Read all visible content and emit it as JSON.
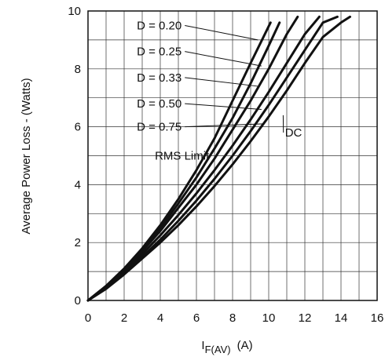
{
  "chart_data": {
    "type": "line",
    "title": "",
    "xlabel": "I",
    "xlabel_subscript": "F(AV)",
    "xlabel_unit": "(A)",
    "ylabel": "Average Power Loss - (Watts)",
    "xlim": [
      0,
      16
    ],
    "ylim": [
      0,
      10
    ],
    "x_ticks": [
      0,
      2,
      4,
      6,
      8,
      10,
      12,
      14,
      16
    ],
    "y_ticks": [
      0,
      2,
      4,
      6,
      8,
      10
    ],
    "grid": true,
    "legend": "none",
    "series": [
      {
        "name": "D = 0.20",
        "x": [
          0,
          1,
          2,
          3,
          4,
          5,
          6,
          7,
          8,
          9,
          10.1
        ],
        "y": [
          0,
          0.5,
          1.1,
          1.8,
          2.6,
          3.5,
          4.5,
          5.6,
          6.9,
          8.2,
          9.6
        ]
      },
      {
        "name": "D = 0.25",
        "x": [
          0,
          1,
          2,
          3,
          4,
          5,
          6,
          7,
          8,
          9,
          10,
          10.6
        ],
        "y": [
          0,
          0.5,
          1.1,
          1.75,
          2.5,
          3.35,
          4.25,
          5.25,
          6.3,
          7.5,
          8.8,
          9.6
        ]
      },
      {
        "name": "D = 0.33",
        "x": [
          0,
          1,
          2,
          3,
          4,
          5,
          6,
          7,
          8,
          9,
          10,
          11,
          11.6
        ],
        "y": [
          0,
          0.45,
          1.05,
          1.7,
          2.4,
          3.2,
          4.0,
          4.9,
          5.9,
          6.9,
          8.0,
          9.2,
          9.8
        ]
      },
      {
        "name": "D = 0.50",
        "x": [
          0,
          1,
          2,
          3,
          4,
          5,
          6,
          7,
          8,
          9,
          10,
          11,
          12,
          12.8
        ],
        "y": [
          0,
          0.45,
          1.0,
          1.6,
          2.25,
          2.95,
          3.7,
          4.5,
          5.35,
          6.25,
          7.2,
          8.2,
          9.2,
          9.8
        ]
      },
      {
        "name": "D = 0.75",
        "x": [
          0,
          1,
          2,
          3,
          4,
          5,
          6,
          7,
          8,
          9,
          10,
          11,
          12,
          13,
          13.8
        ],
        "y": [
          0,
          0.42,
          0.95,
          1.5,
          2.1,
          2.75,
          3.45,
          4.2,
          5.0,
          5.85,
          6.75,
          7.7,
          8.65,
          9.6,
          9.8
        ]
      },
      {
        "name": "DC",
        "x": [
          0,
          1,
          2,
          3,
          4,
          5,
          6,
          7,
          8,
          9,
          10,
          11,
          12,
          13,
          14,
          14.5
        ],
        "y": [
          0,
          0.4,
          0.9,
          1.45,
          2.0,
          2.6,
          3.25,
          3.95,
          4.7,
          5.5,
          6.35,
          7.25,
          8.2,
          9.1,
          9.6,
          9.8
        ]
      }
    ],
    "annotations": [
      {
        "text": "D = 0.20",
        "target": [
          9.4,
          9.0
        ],
        "label_pos": [
          2.7,
          9.5
        ]
      },
      {
        "text": "D = 0.25",
        "target": [
          9.6,
          8.1
        ],
        "label_pos": [
          2.7,
          8.6
        ]
      },
      {
        "text": "D = 0.33",
        "target": [
          9.4,
          7.4
        ],
        "label_pos": [
          2.7,
          7.7
        ]
      },
      {
        "text": "D = 0.50",
        "target": [
          9.6,
          6.6
        ],
        "label_pos": [
          2.7,
          6.8
        ]
      },
      {
        "text": "D = 0.75",
        "target": [
          9.7,
          6.1
        ],
        "label_pos": [
          2.7,
          6.0
        ]
      },
      {
        "text": "DC",
        "target": [
          10.8,
          6.4
        ],
        "label_pos": [
          10.9,
          5.8
        ]
      },
      {
        "text": "RMS Limit",
        "target": null,
        "label_pos": [
          3.7,
          5.0
        ]
      }
    ]
  }
}
